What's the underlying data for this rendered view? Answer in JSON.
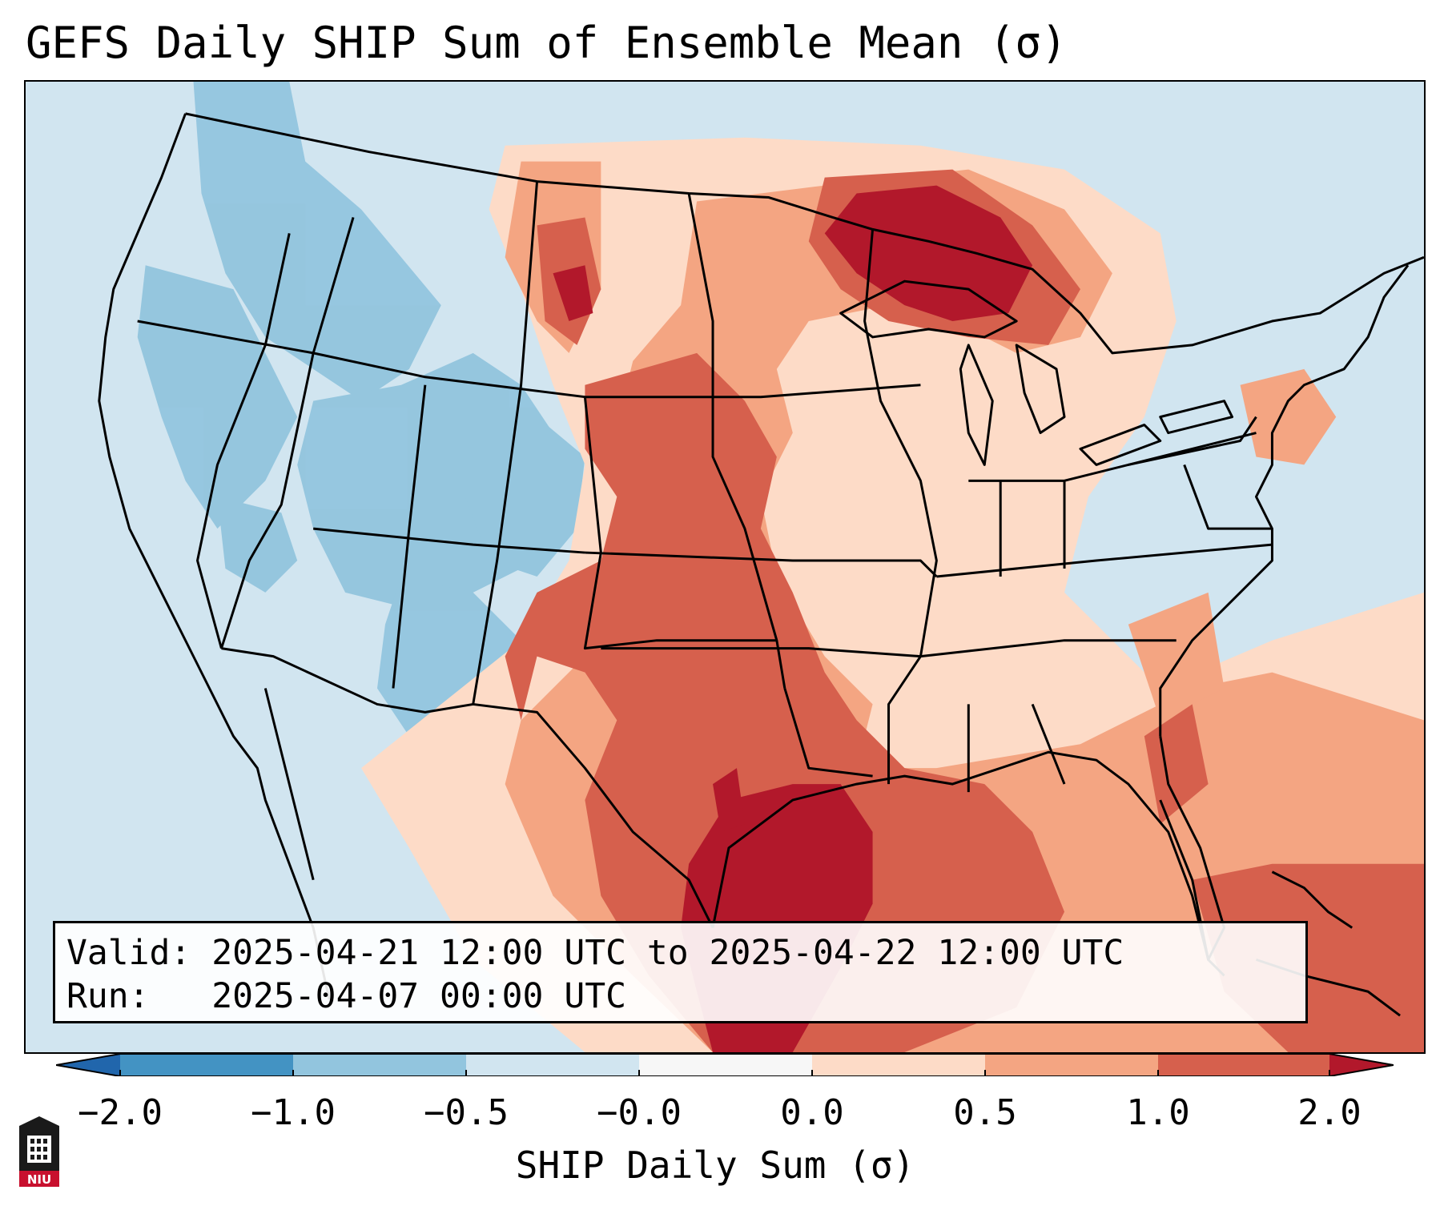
{
  "title": "GEFS Daily SHIP Sum of Ensemble Mean (σ)",
  "info": {
    "valid_label": "Valid:",
    "valid_value": "2025-04-21 12:00 UTC to 2025-04-22 12:00 UTC",
    "run_label": "Run:",
    "run_value": "2025-04-07 00:00 UTC"
  },
  "colorbar": {
    "label": "SHIP Daily Sum (σ)",
    "ticks": [
      "−2.0",
      "−1.0",
      "−0.5",
      "−0.0",
      "0.0",
      "0.5",
      "1.0",
      "2.0"
    ],
    "colors": {
      "below_min": "#2166ac",
      "neg_2_to_1": "#4393c3",
      "neg_1_to_05": "#92c5de",
      "neg_05_to_0": "#d1e5f0",
      "zero": "#f7f7f7",
      "pos_0_to_05": "#fddbc7",
      "pos_05_to_1": "#f4a582",
      "pos_1_to_2": "#d6604d",
      "above_max": "#b2182b"
    }
  },
  "logo": {
    "text": "NIU"
  }
}
